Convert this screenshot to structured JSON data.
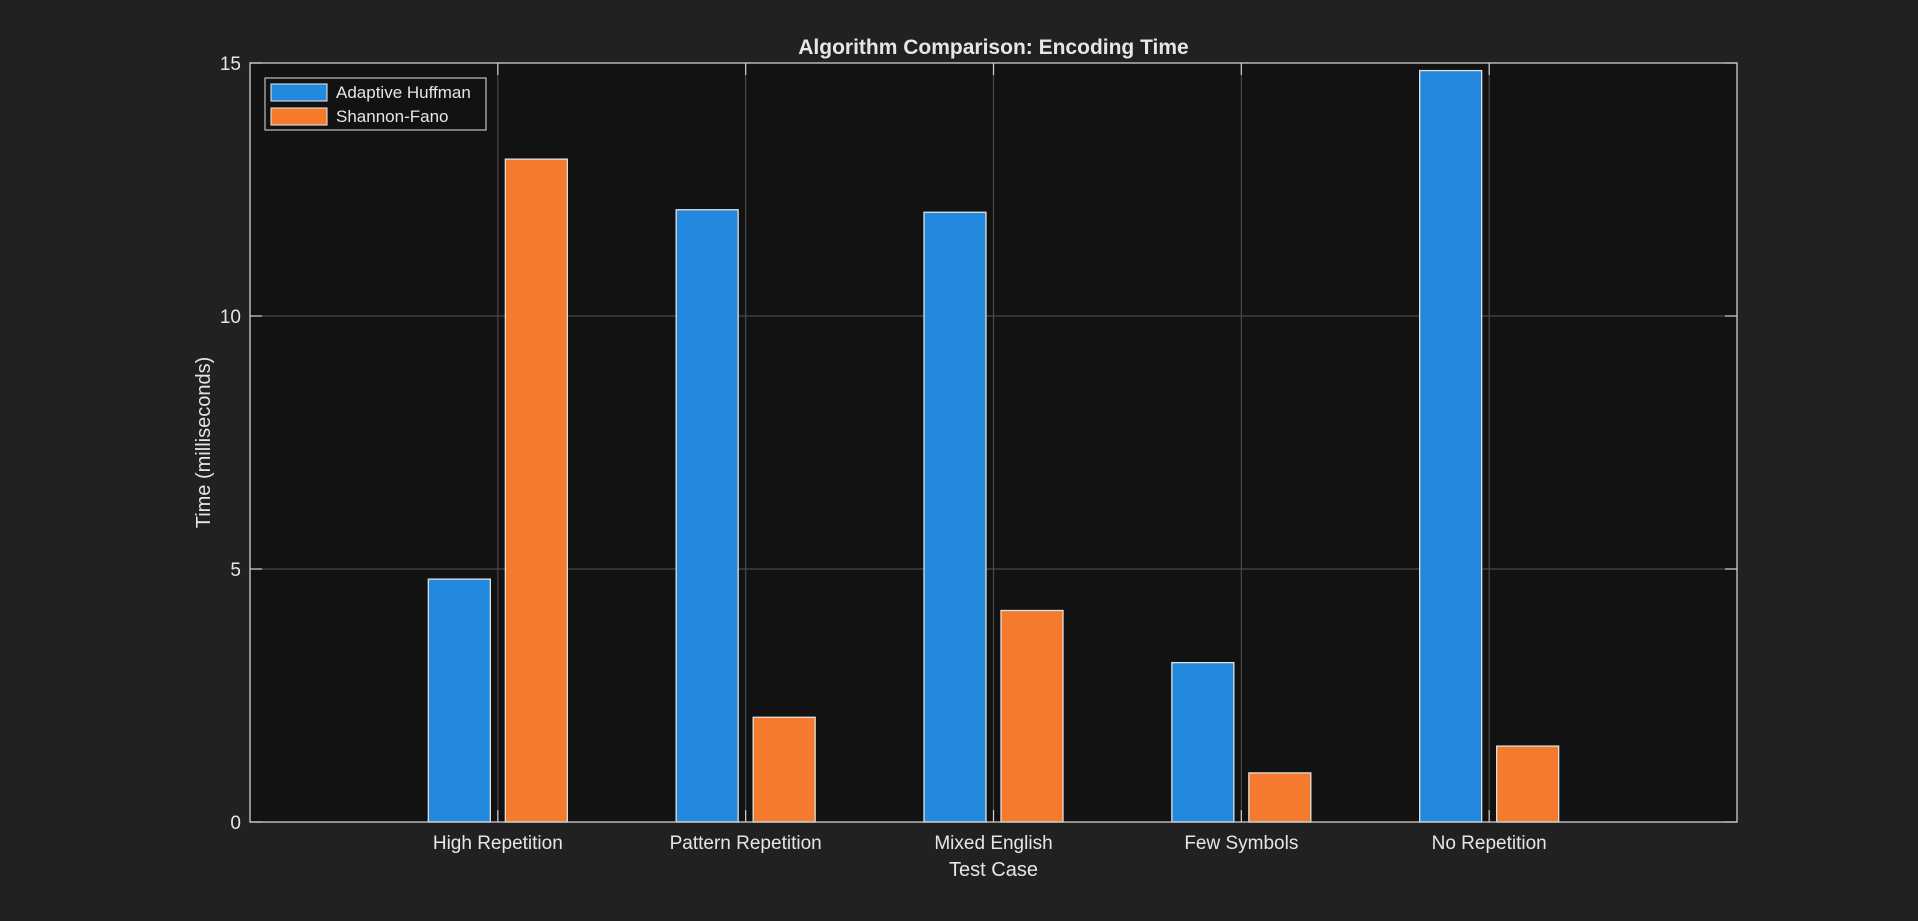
{
  "chart_data": {
    "type": "bar",
    "title": "Algorithm Comparison: Encoding Time",
    "xlabel": "Test Case",
    "ylabel": "Time (milliseconds)",
    "categories": [
      "High Repetition",
      "Pattern Repetition",
      "Mixed English",
      "Few Symbols",
      "No Repetition"
    ],
    "series": [
      {
        "name": "Adaptive Huffman",
        "color": "#2389df",
        "values": [
          4.8,
          12.1,
          12.05,
          3.15,
          14.85
        ]
      },
      {
        "name": "Shannon-Fano",
        "color": "#f47a2e",
        "values": [
          13.1,
          2.07,
          4.18,
          0.97,
          1.5
        ]
      }
    ],
    "ylim": [
      0,
      15
    ],
    "yticks": [
      0,
      5,
      10,
      15
    ],
    "grid": true,
    "legend_position": "top-left",
    "colors": {
      "figure_background": "#212121",
      "axes_background": "#121212",
      "axes_edge": "#cfcfcf",
      "grid": "#4a4a4a",
      "text": "#e6e6e6",
      "bar_edge": "#e0e0e0"
    }
  }
}
